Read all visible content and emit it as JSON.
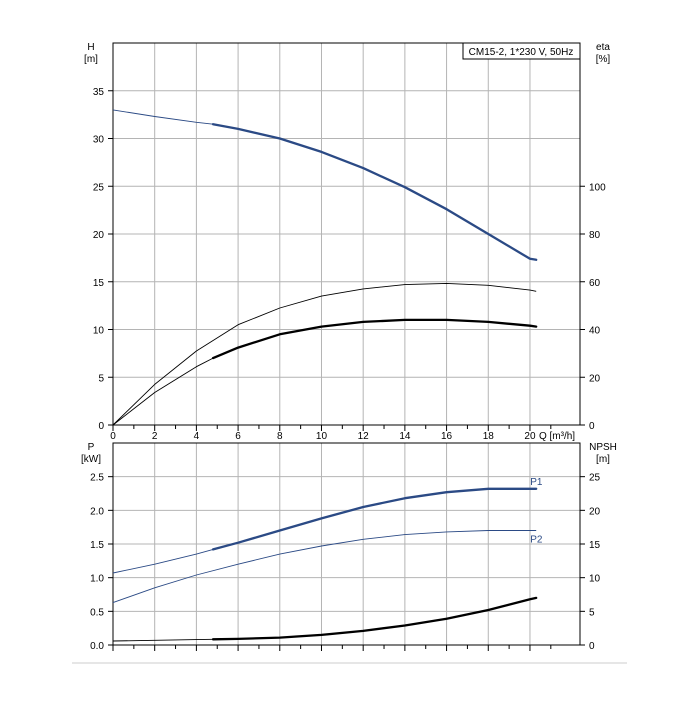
{
  "colors": {
    "navy": "#2b4a85",
    "black": "#000000",
    "grid": "#b4b4b4"
  },
  "chart_data": [
    {
      "type": "line",
      "title": "CM15-2, 1*230 V, 50Hz",
      "ylabel_left": [
        "H",
        "[m]"
      ],
      "ylabel_right": [
        "eta",
        "[%]"
      ],
      "xlabel": "Q [m³/h]",
      "xlim": [
        0,
        22.4
      ],
      "ylim": [
        0,
        40
      ],
      "yright_lim": [
        0,
        160
      ],
      "x_ticks": [
        0,
        2,
        4,
        6,
        8,
        10,
        12,
        14,
        16,
        18,
        20
      ],
      "y_ticks": [
        0,
        5,
        10,
        15,
        20,
        25,
        30,
        35
      ],
      "yright_ticks": [
        0,
        20,
        40,
        60,
        80,
        100
      ],
      "grid": true,
      "series": [
        {
          "axis": "left",
          "color": "#2b4a85",
          "x": [
            0,
            2,
            4,
            4.8,
            6,
            8,
            10,
            12,
            14,
            16,
            18,
            20,
            20.3
          ],
          "y": [
            33,
            32.3,
            31.7,
            31.5,
            31.0,
            30.0,
            28.6,
            26.9,
            24.9,
            22.6,
            20.0,
            17.4,
            17.3
          ]
        },
        {
          "axis": "right",
          "color": "#000000",
          "x": [
            0,
            2,
            4,
            6,
            8,
            10,
            12,
            14,
            16,
            18,
            20,
            20.3
          ],
          "y": [
            0,
            17,
            31,
            42,
            49,
            54,
            57,
            58.8,
            59.3,
            58.5,
            56.5,
            56
          ]
        },
        {
          "axis": "left",
          "color": "#000000",
          "x": [
            0,
            2,
            4,
            4.8,
            6,
            8,
            10,
            12,
            14,
            16,
            18,
            20,
            20.3
          ],
          "y": [
            0,
            3.4,
            6.1,
            7.0,
            8.1,
            9.5,
            10.3,
            10.8,
            11.0,
            11.0,
            10.8,
            10.4,
            10.3
          ]
        }
      ]
    },
    {
      "type": "line",
      "ylabel_left": [
        "P",
        "[kW]"
      ],
      "ylabel_right": [
        "NPSH",
        "[m]"
      ],
      "xlim": [
        0,
        22.4
      ],
      "ylim": [
        0,
        3.0
      ],
      "yright_lim": [
        0,
        30
      ],
      "y_ticks": [
        0,
        0.5,
        1.0,
        1.5,
        2.0,
        2.5
      ],
      "y_tick_labels": [
        "0.0",
        "0.5",
        "1.0",
        "1.5",
        "2.0",
        "2.5"
      ],
      "yright_ticks": [
        0,
        5,
        10,
        15,
        20,
        25
      ],
      "grid": true,
      "series": [
        {
          "name": "P1",
          "axis": "left",
          "color": "#2b4a85",
          "x": [
            0,
            2,
            4,
            4.8,
            6,
            8,
            10,
            12,
            14,
            16,
            18,
            20,
            20.3
          ],
          "y": [
            1.07,
            1.2,
            1.35,
            1.42,
            1.52,
            1.7,
            1.88,
            2.05,
            2.18,
            2.27,
            2.32,
            2.32,
            2.32
          ]
        },
        {
          "name": "P2",
          "axis": "left",
          "color": "#2b4a85",
          "x": [
            0,
            2,
            4,
            6,
            8,
            10,
            12,
            14,
            16,
            18,
            20,
            20.3
          ],
          "y": [
            0.63,
            0.85,
            1.04,
            1.2,
            1.35,
            1.47,
            1.57,
            1.64,
            1.68,
            1.7,
            1.7,
            1.7
          ]
        },
        {
          "axis": "right",
          "color": "#000000",
          "x": [
            0,
            2,
            4,
            4.8,
            6,
            8,
            10,
            12,
            14,
            16,
            18,
            20,
            20.3
          ],
          "y": [
            0.6,
            0.7,
            0.8,
            0.85,
            0.9,
            1.1,
            1.5,
            2.1,
            2.9,
            3.9,
            5.2,
            6.8,
            7.0
          ]
        }
      ]
    }
  ]
}
